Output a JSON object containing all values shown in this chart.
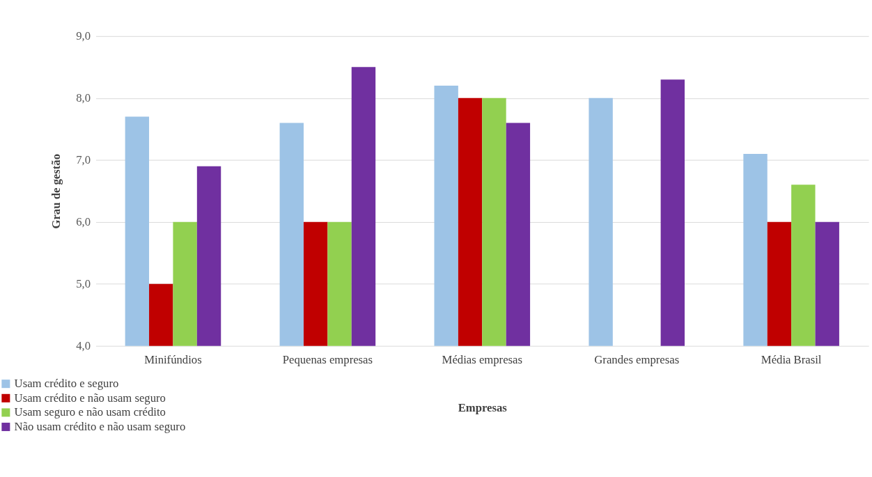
{
  "chart_data": {
    "type": "bar",
    "xlabel": "Empresas",
    "ylabel": "Grau de gestão",
    "categories": [
      "Minifúndios",
      "Pequenas empresas",
      "Médias empresas",
      "Grandes empresas",
      "Média Brasil"
    ],
    "series": [
      {
        "name": "Usam crédito e seguro",
        "color": "#9dc3e6",
        "values": [
          7.7,
          7.6,
          8.2,
          8.0,
          7.1
        ]
      },
      {
        "name": "Usam crédito e não usam seguro",
        "color": "#c00000",
        "values": [
          5.0,
          6.0,
          8.0,
          null,
          6.0
        ]
      },
      {
        "name": "Usam seguro e não usam crédito",
        "color": "#92d050",
        "values": [
          6.0,
          6.0,
          8.0,
          null,
          6.6
        ]
      },
      {
        "name": "Não usam crédito e não usam seguro",
        "color": "#7030a0",
        "values": [
          6.9,
          8.5,
          7.6,
          8.3,
          6.0
        ]
      }
    ],
    "ylim": [
      4.0,
      9.0
    ],
    "yticks": [
      {
        "value": 4,
        "label": "4,0"
      },
      {
        "value": 5,
        "label": "5,0"
      },
      {
        "value": 6,
        "label": "6,0"
      },
      {
        "value": 7,
        "label": "7,0"
      },
      {
        "value": 8,
        "label": "8,0"
      },
      {
        "value": 9,
        "label": "9,0"
      }
    ],
    "grid": "y",
    "legend": "bottom left"
  }
}
